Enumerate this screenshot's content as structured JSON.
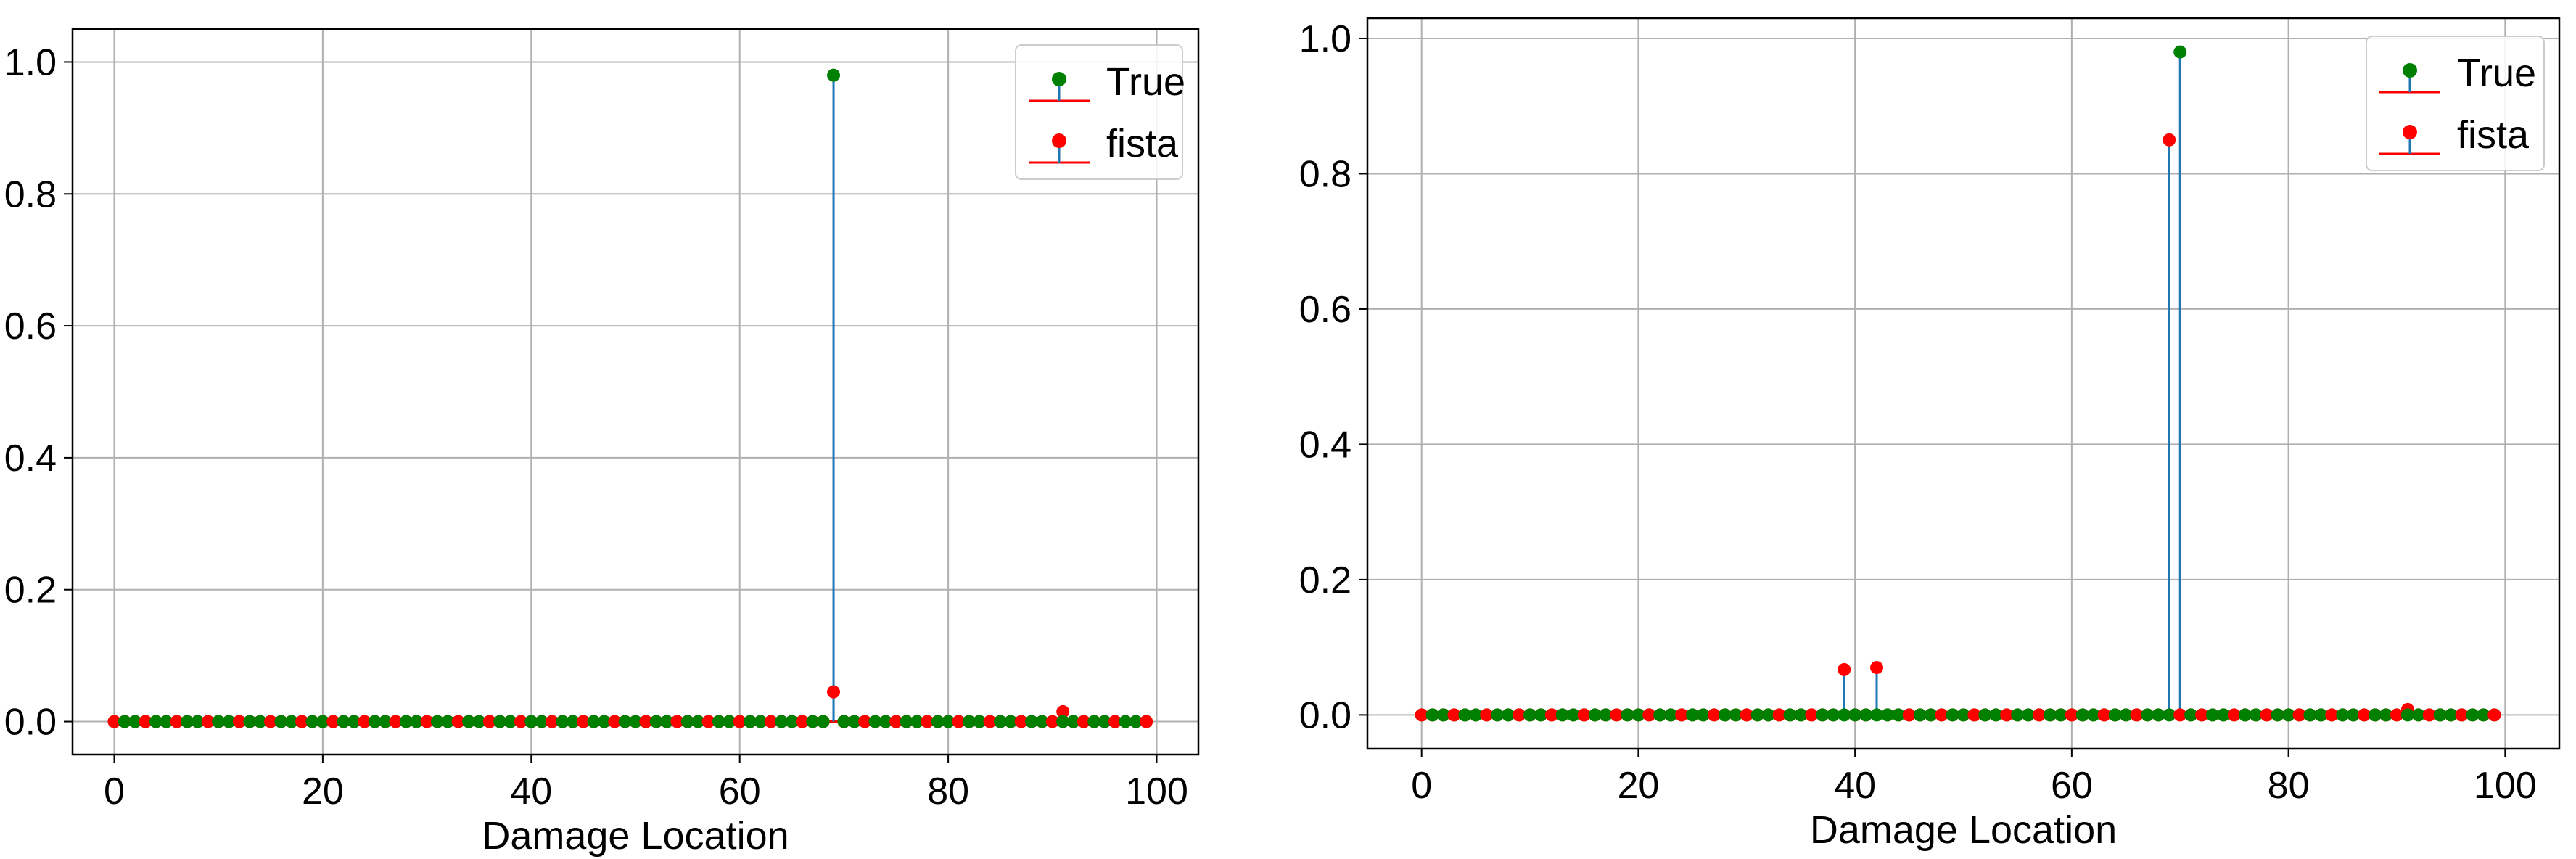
{
  "colors": {
    "true_marker": "#008000",
    "fista_marker": "#ff0000",
    "stem_line": "#1f77b4",
    "baseline": "#ff0000",
    "grid": "#b0b0b0",
    "axes": "#000000"
  },
  "chart_data": [
    {
      "type": "stem",
      "title": "",
      "xlabel": "Damage Location",
      "ylabel": "",
      "xlim": [
        -4,
        104
      ],
      "ylim": [
        -0.05,
        1.05
      ],
      "xticks": [
        0,
        20,
        40,
        60,
        80,
        100
      ],
      "xtick_labels": [
        "0",
        "20",
        "40",
        "60",
        "80",
        "100"
      ],
      "yticks": [
        0.0,
        0.2,
        0.4,
        0.6,
        0.8,
        1.0
      ],
      "ytick_labels": [
        "0.0",
        "0.2",
        "0.4",
        "0.6",
        "0.8",
        "1.0"
      ],
      "grid": true,
      "legend": {
        "placement": "upper right",
        "entries": [
          "True",
          "fista"
        ]
      },
      "series": [
        {
          "name": "True",
          "x_range": [
            0,
            99
          ],
          "default": 0,
          "nonzero": [
            {
              "x": 69,
              "y": 0.98
            }
          ]
        },
        {
          "name": "fista",
          "x_range": [
            0,
            99
          ],
          "default": 0,
          "nonzero": [
            {
              "x": 69,
              "y": 0.045
            },
            {
              "x": 91,
              "y": 0.015
            }
          ]
        }
      ]
    },
    {
      "type": "stem",
      "title": "",
      "xlabel": "Damage Location",
      "ylabel": "",
      "xlim": [
        -5,
        105
      ],
      "ylim": [
        -0.05,
        1.03
      ],
      "xticks": [
        0,
        20,
        40,
        60,
        80,
        100
      ],
      "xtick_labels": [
        "0",
        "20",
        "40",
        "60",
        "80",
        "100"
      ],
      "yticks": [
        0.0,
        0.2,
        0.4,
        0.6,
        0.8,
        1.0
      ],
      "ytick_labels": [
        "0.0",
        "0.2",
        "0.4",
        "0.6",
        "0.8",
        "1.0"
      ],
      "grid": true,
      "legend": {
        "placement": "upper right",
        "entries": [
          "True",
          "fista"
        ]
      },
      "series": [
        {
          "name": "True",
          "x_range": [
            0,
            99
          ],
          "default": 0,
          "nonzero": [
            {
              "x": 70,
              "y": 0.98
            }
          ]
        },
        {
          "name": "fista",
          "x_range": [
            0,
            99
          ],
          "default": 0,
          "nonzero": [
            {
              "x": 39,
              "y": 0.067
            },
            {
              "x": 42,
              "y": 0.07
            },
            {
              "x": 69,
              "y": 0.85
            },
            {
              "x": 91,
              "y": 0.008
            }
          ]
        }
      ]
    }
  ]
}
